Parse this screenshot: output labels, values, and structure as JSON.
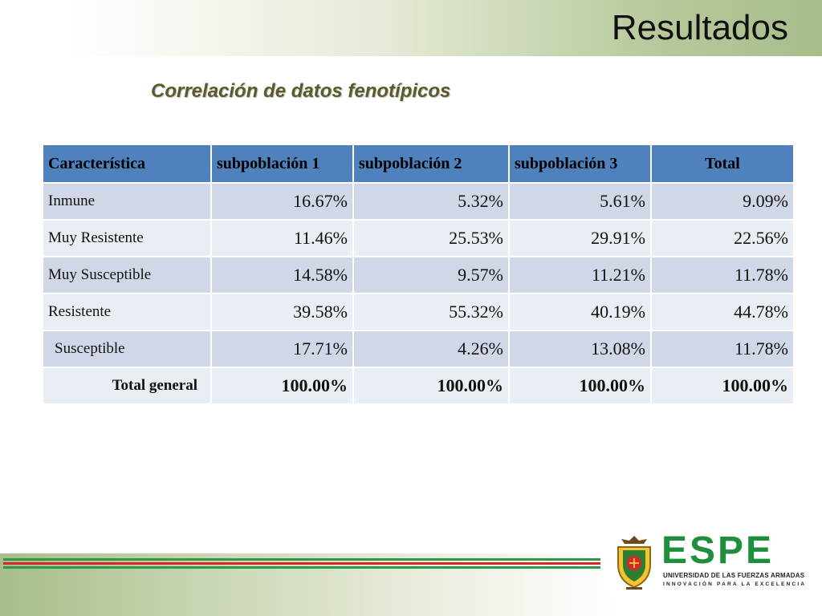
{
  "slide": {
    "title": "Resultados",
    "subtitle": "Correlación de datos fenotípicos"
  },
  "table": {
    "headers": [
      "Característica",
      "subpoblación 1",
      "subpoblación 2",
      "subpoblación 3",
      "Total"
    ],
    "rows": [
      {
        "label": "Inmune",
        "values": [
          "16.67%",
          "5.32%",
          "5.61%",
          "9.09%"
        ]
      },
      {
        "label": "Muy Resistente",
        "values": [
          "11.46%",
          "25.53%",
          "29.91%",
          "22.56%"
        ]
      },
      {
        "label": "Muy Susceptible",
        "values": [
          "14.58%",
          "9.57%",
          "11.21%",
          "11.78%"
        ]
      },
      {
        "label": "Resistente",
        "values": [
          "39.58%",
          "55.32%",
          "40.19%",
          "44.78%"
        ]
      },
      {
        "label": "Susceptible",
        "values": [
          "17.71%",
          "4.26%",
          "13.08%",
          "11.78%"
        ]
      }
    ],
    "total_row": {
      "label": "Total general",
      "values": [
        "100.00%",
        "100.00%",
        "100.00%",
        "100.00%"
      ]
    }
  },
  "logo": {
    "name": "ESPE",
    "university": "UNIVERSIDAD DE LAS FUERZAS ARMADAS",
    "motto": "INNOVACIÓN PARA LA EXCELENCIA",
    "crest_icon": "university-crest-icon"
  },
  "colors": {
    "header_blue": "#4f81bd",
    "row_dark": "#d0d8e8",
    "row_light": "#e9edf4",
    "brand_green": "#1f8f3e",
    "stripe_red": "#d9262c"
  }
}
